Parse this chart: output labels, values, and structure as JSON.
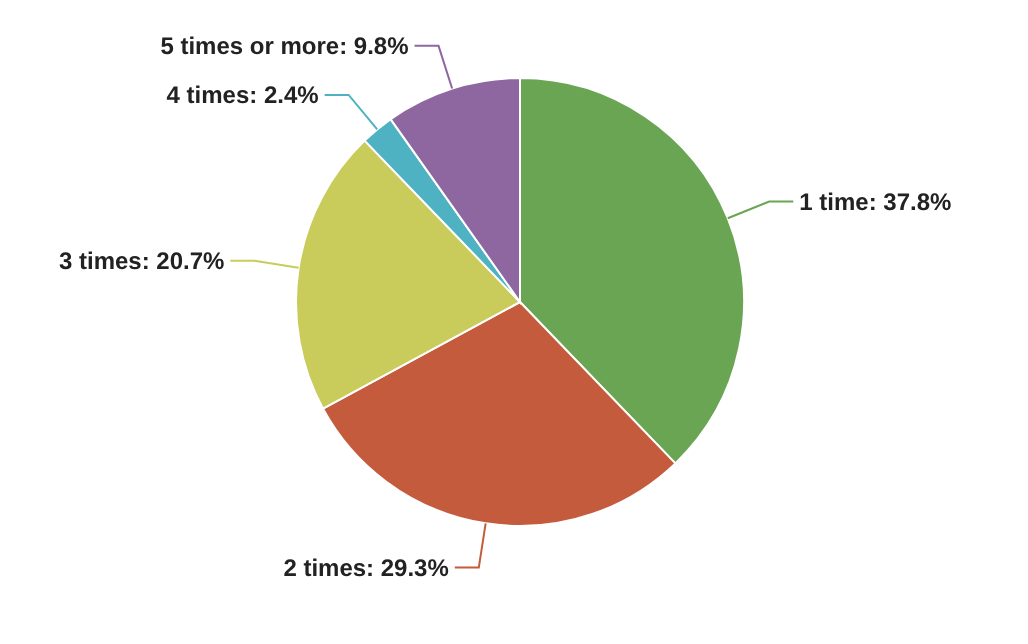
{
  "chart_data": {
    "type": "pie",
    "categories": [
      "1 time",
      "2 times",
      "3 times",
      "4 times",
      "5 times or more"
    ],
    "values": [
      37.8,
      29.3,
      20.7,
      2.4,
      9.8
    ],
    "colors": [
      "#6aa553",
      "#c55b3d",
      "#c9cb5b",
      "#4fb2c2",
      "#8e67a0"
    ],
    "value_labels": [
      "37.8%",
      "29.3%",
      "20.7%",
      "2.4%",
      "9.8%"
    ]
  }
}
